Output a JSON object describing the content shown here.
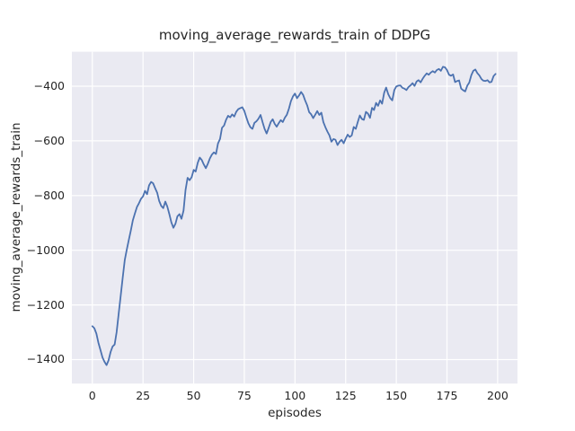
{
  "chart_data": {
    "type": "line",
    "title": "moving_average_rewards_train of DDPG",
    "xlabel": "episodes",
    "ylabel": "moving_average_rewards_train",
    "x_ticks": [
      0,
      25,
      50,
      75,
      100,
      125,
      150,
      175,
      200
    ],
    "x_tick_labels": [
      "0",
      "25",
      "50",
      "75",
      "100",
      "125",
      "150",
      "175",
      "200"
    ],
    "y_ticks": [
      -400,
      -600,
      -800,
      -1000,
      -1200,
      -1400
    ],
    "y_tick_labels": [
      "−400",
      "−600",
      "−800",
      "−1000",
      "−1200",
      "−1400"
    ],
    "xlim": [
      -10.1,
      209.8
    ],
    "ylim": [
      -1487.7,
      -273.9
    ],
    "grid": true,
    "legend_position": "none",
    "colors": {
      "line": "#4c72b0",
      "plot_background": "#eaeaf2",
      "grid_line": "#ffffff",
      "text": "#262626",
      "figure_background": "#ffffff"
    },
    "series": [
      {
        "name": "DDPG",
        "points": [
          [
            0,
            -1278
          ],
          [
            1,
            -1285
          ],
          [
            2,
            -1305
          ],
          [
            3,
            -1338
          ],
          [
            4,
            -1365
          ],
          [
            5,
            -1392
          ],
          [
            6,
            -1408
          ],
          [
            7,
            -1420
          ],
          [
            8,
            -1403
          ],
          [
            9,
            -1372
          ],
          [
            10,
            -1352
          ],
          [
            11,
            -1345
          ],
          [
            12,
            -1300
          ],
          [
            13,
            -1232
          ],
          [
            14,
            -1165
          ],
          [
            15,
            -1100
          ],
          [
            16,
            -1035
          ],
          [
            17,
            -998
          ],
          [
            18,
            -962
          ],
          [
            19,
            -928
          ],
          [
            20,
            -890
          ],
          [
            21,
            -866
          ],
          [
            22,
            -842
          ],
          [
            23,
            -828
          ],
          [
            24,
            -812
          ],
          [
            25,
            -803
          ],
          [
            26,
            -783
          ],
          [
            27,
            -795
          ],
          [
            28,
            -763
          ],
          [
            29,
            -750
          ],
          [
            30,
            -755
          ],
          [
            31,
            -773
          ],
          [
            32,
            -790
          ],
          [
            33,
            -820
          ],
          [
            34,
            -838
          ],
          [
            35,
            -846
          ],
          [
            36,
            -822
          ],
          [
            37,
            -840
          ],
          [
            38,
            -868
          ],
          [
            39,
            -898
          ],
          [
            40,
            -918
          ],
          [
            41,
            -903
          ],
          [
            42,
            -876
          ],
          [
            43,
            -868
          ],
          [
            44,
            -885
          ],
          [
            45,
            -855
          ],
          [
            46,
            -780
          ],
          [
            47,
            -735
          ],
          [
            48,
            -744
          ],
          [
            49,
            -733
          ],
          [
            50,
            -706
          ],
          [
            51,
            -712
          ],
          [
            52,
            -680
          ],
          [
            53,
            -661
          ],
          [
            54,
            -670
          ],
          [
            55,
            -686
          ],
          [
            56,
            -700
          ],
          [
            57,
            -684
          ],
          [
            58,
            -664
          ],
          [
            59,
            -650
          ],
          [
            60,
            -642
          ],
          [
            61,
            -648
          ],
          [
            62,
            -610
          ],
          [
            63,
            -593
          ],
          [
            64,
            -552
          ],
          [
            65,
            -544
          ],
          [
            66,
            -523
          ],
          [
            67,
            -508
          ],
          [
            68,
            -514
          ],
          [
            69,
            -503
          ],
          [
            70,
            -511
          ],
          [
            71,
            -494
          ],
          [
            72,
            -484
          ],
          [
            73,
            -480
          ],
          [
            74,
            -477
          ],
          [
            75,
            -490
          ],
          [
            76,
            -514
          ],
          [
            77,
            -536
          ],
          [
            78,
            -550
          ],
          [
            79,
            -556
          ],
          [
            80,
            -534
          ],
          [
            81,
            -528
          ],
          [
            82,
            -519
          ],
          [
            83,
            -505
          ],
          [
            84,
            -531
          ],
          [
            85,
            -556
          ],
          [
            86,
            -573
          ],
          [
            87,
            -553
          ],
          [
            88,
            -531
          ],
          [
            89,
            -521
          ],
          [
            90,
            -538
          ],
          [
            91,
            -548
          ],
          [
            92,
            -535
          ],
          [
            93,
            -524
          ],
          [
            94,
            -531
          ],
          [
            95,
            -515
          ],
          [
            96,
            -504
          ],
          [
            97,
            -482
          ],
          [
            98,
            -455
          ],
          [
            99,
            -437
          ],
          [
            100,
            -427
          ],
          [
            101,
            -444
          ],
          [
            102,
            -434
          ],
          [
            103,
            -421
          ],
          [
            104,
            -432
          ],
          [
            105,
            -452
          ],
          [
            106,
            -470
          ],
          [
            107,
            -495
          ],
          [
            108,
            -503
          ],
          [
            109,
            -517
          ],
          [
            110,
            -504
          ],
          [
            111,
            -491
          ],
          [
            112,
            -505
          ],
          [
            113,
            -497
          ],
          [
            114,
            -531
          ],
          [
            115,
            -550
          ],
          [
            116,
            -566
          ],
          [
            117,
            -580
          ],
          [
            118,
            -603
          ],
          [
            119,
            -593
          ],
          [
            120,
            -596
          ],
          [
            121,
            -615
          ],
          [
            122,
            -603
          ],
          [
            123,
            -596
          ],
          [
            124,
            -609
          ],
          [
            125,
            -592
          ],
          [
            126,
            -577
          ],
          [
            127,
            -586
          ],
          [
            128,
            -580
          ],
          [
            129,
            -549
          ],
          [
            130,
            -556
          ],
          [
            131,
            -530
          ],
          [
            132,
            -507
          ],
          [
            133,
            -520
          ],
          [
            134,
            -523
          ],
          [
            135,
            -494
          ],
          [
            136,
            -500
          ],
          [
            137,
            -516
          ],
          [
            138,
            -479
          ],
          [
            139,
            -487
          ],
          [
            140,
            -461
          ],
          [
            141,
            -472
          ],
          [
            142,
            -452
          ],
          [
            143,
            -464
          ],
          [
            144,
            -424
          ],
          [
            145,
            -405
          ],
          [
            146,
            -429
          ],
          [
            147,
            -444
          ],
          [
            148,
            -452
          ],
          [
            149,
            -414
          ],
          [
            150,
            -401
          ],
          [
            151,
            -398
          ],
          [
            152,
            -397
          ],
          [
            153,
            -406
          ],
          [
            154,
            -409
          ],
          [
            155,
            -414
          ],
          [
            156,
            -403
          ],
          [
            157,
            -397
          ],
          [
            158,
            -389
          ],
          [
            159,
            -399
          ],
          [
            160,
            -383
          ],
          [
            161,
            -378
          ],
          [
            162,
            -386
          ],
          [
            163,
            -373
          ],
          [
            164,
            -362
          ],
          [
            165,
            -353
          ],
          [
            166,
            -358
          ],
          [
            167,
            -350
          ],
          [
            168,
            -345
          ],
          [
            169,
            -350
          ],
          [
            170,
            -341
          ],
          [
            171,
            -337
          ],
          [
            172,
            -344
          ],
          [
            173,
            -329
          ],
          [
            174,
            -331
          ],
          [
            175,
            -341
          ],
          [
            176,
            -358
          ],
          [
            177,
            -362
          ],
          [
            178,
            -357
          ],
          [
            179,
            -385
          ],
          [
            180,
            -381
          ],
          [
            181,
            -379
          ],
          [
            182,
            -409
          ],
          [
            183,
            -415
          ],
          [
            184,
            -419
          ],
          [
            185,
            -398
          ],
          [
            186,
            -387
          ],
          [
            187,
            -360
          ],
          [
            188,
            -344
          ],
          [
            189,
            -339
          ],
          [
            190,
            -352
          ],
          [
            191,
            -361
          ],
          [
            192,
            -374
          ],
          [
            193,
            -380
          ],
          [
            194,
            -381
          ],
          [
            195,
            -378
          ],
          [
            196,
            -386
          ],
          [
            197,
            -384
          ],
          [
            198,
            -363
          ],
          [
            199,
            -355
          ]
        ]
      }
    ]
  }
}
